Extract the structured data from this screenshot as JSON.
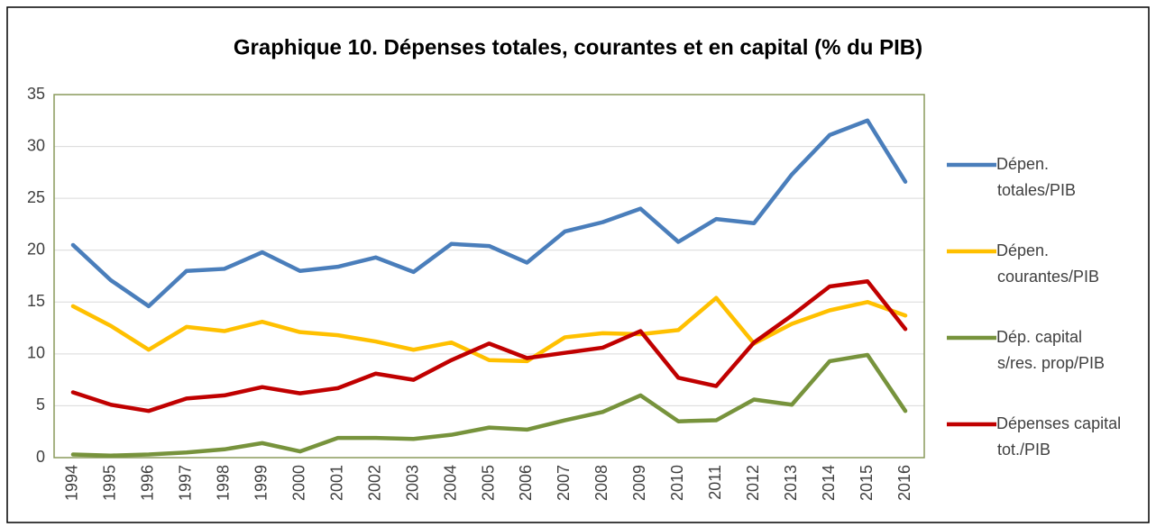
{
  "chart_data": {
    "type": "line",
    "title": "Graphique 10. Dépenses totales, courantes et en capital (% du PIB)",
    "categories": [
      "1994",
      "1995",
      "1996",
      "1997",
      "1998",
      "1999",
      "2000",
      "2001",
      "2002",
      "2003",
      "2004",
      "2005",
      "2006",
      "2007",
      "2008",
      "2009",
      "2010",
      "2011",
      "2012",
      "2013",
      "2014",
      "2015",
      "2016"
    ],
    "series": [
      {
        "name": "Dépen. totales/PIB",
        "color": "#4a7ebb",
        "values": [
          20.5,
          17.1,
          14.6,
          18.0,
          18.2,
          19.8,
          18.0,
          18.4,
          19.3,
          17.9,
          20.6,
          20.4,
          18.8,
          21.8,
          22.7,
          24.0,
          20.8,
          23.0,
          22.6,
          27.3,
          31.1,
          32.5,
          26.6
        ]
      },
      {
        "name": "Dépen. courantes/PIB",
        "color": "#ffc000",
        "values": [
          14.6,
          12.7,
          10.4,
          12.6,
          12.2,
          13.1,
          12.1,
          11.8,
          11.2,
          10.4,
          11.1,
          9.4,
          9.3,
          11.6,
          12.0,
          11.9,
          12.3,
          15.4,
          11.0,
          12.9,
          14.2,
          15.0,
          13.7
        ]
      },
      {
        "name": "Dép. capital s/res. prop/PIB",
        "color": "#77933c",
        "values": [
          0.3,
          0.2,
          0.3,
          0.5,
          0.8,
          1.4,
          0.6,
          1.9,
          1.9,
          1.8,
          2.2,
          2.9,
          2.7,
          3.6,
          4.4,
          6.0,
          3.5,
          3.6,
          5.6,
          5.1,
          9.3,
          9.9,
          4.5
        ]
      },
      {
        "name": "Dépenses capital tot./PIB",
        "color": "#c00000",
        "values": [
          6.3,
          5.1,
          4.5,
          5.7,
          6.0,
          6.8,
          6.2,
          6.7,
          8.1,
          7.5,
          9.4,
          11.0,
          9.6,
          10.1,
          10.6,
          12.2,
          7.7,
          6.9,
          11.1,
          13.7,
          16.5,
          17.0,
          12.4
        ]
      }
    ],
    "ylim": [
      0,
      35
    ],
    "yticks": [
      0,
      5,
      10,
      15,
      20,
      25,
      30,
      35
    ],
    "grid": true,
    "legend": "right"
  }
}
